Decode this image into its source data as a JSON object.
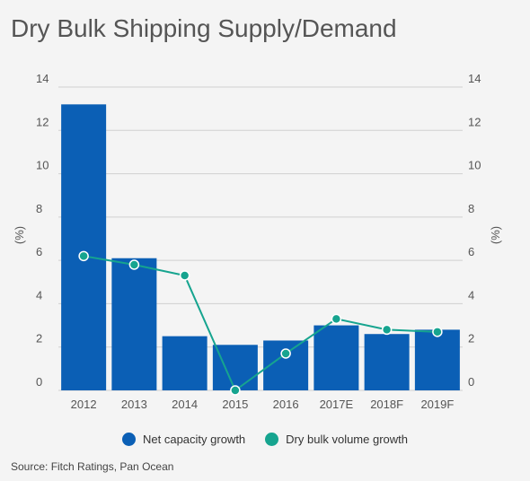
{
  "title": "Dry Bulk Shipping Supply/Demand",
  "source": "Source: Fitch Ratings, Pan Ocean",
  "colors": {
    "bar": "#0b5fb5",
    "line": "#16a48f",
    "grid": "#d0d0d0"
  },
  "chart_data": {
    "type": "bar",
    "categories": [
      "2012",
      "2013",
      "2014",
      "2015",
      "2016",
      "2017E",
      "2018F",
      "2019F"
    ],
    "series": [
      {
        "name": "Net capacity growth",
        "type": "bar",
        "axis": "left",
        "values": [
          13.2,
          6.1,
          2.5,
          2.1,
          2.3,
          3.0,
          2.6,
          2.8
        ]
      },
      {
        "name": "Dry bulk volume growth",
        "type": "line",
        "axis": "right",
        "values": [
          6.2,
          5.8,
          5.3,
          0.0,
          1.7,
          3.3,
          2.8,
          2.7
        ]
      }
    ],
    "ylabel_left": "(%)",
    "ylabel_right": "(%)",
    "ylim": [
      0,
      14
    ],
    "yticks": [
      "0",
      "2",
      "4",
      "6",
      "8",
      "10",
      "12",
      "14"
    ],
    "grid": true,
    "legend_position": "bottom"
  }
}
